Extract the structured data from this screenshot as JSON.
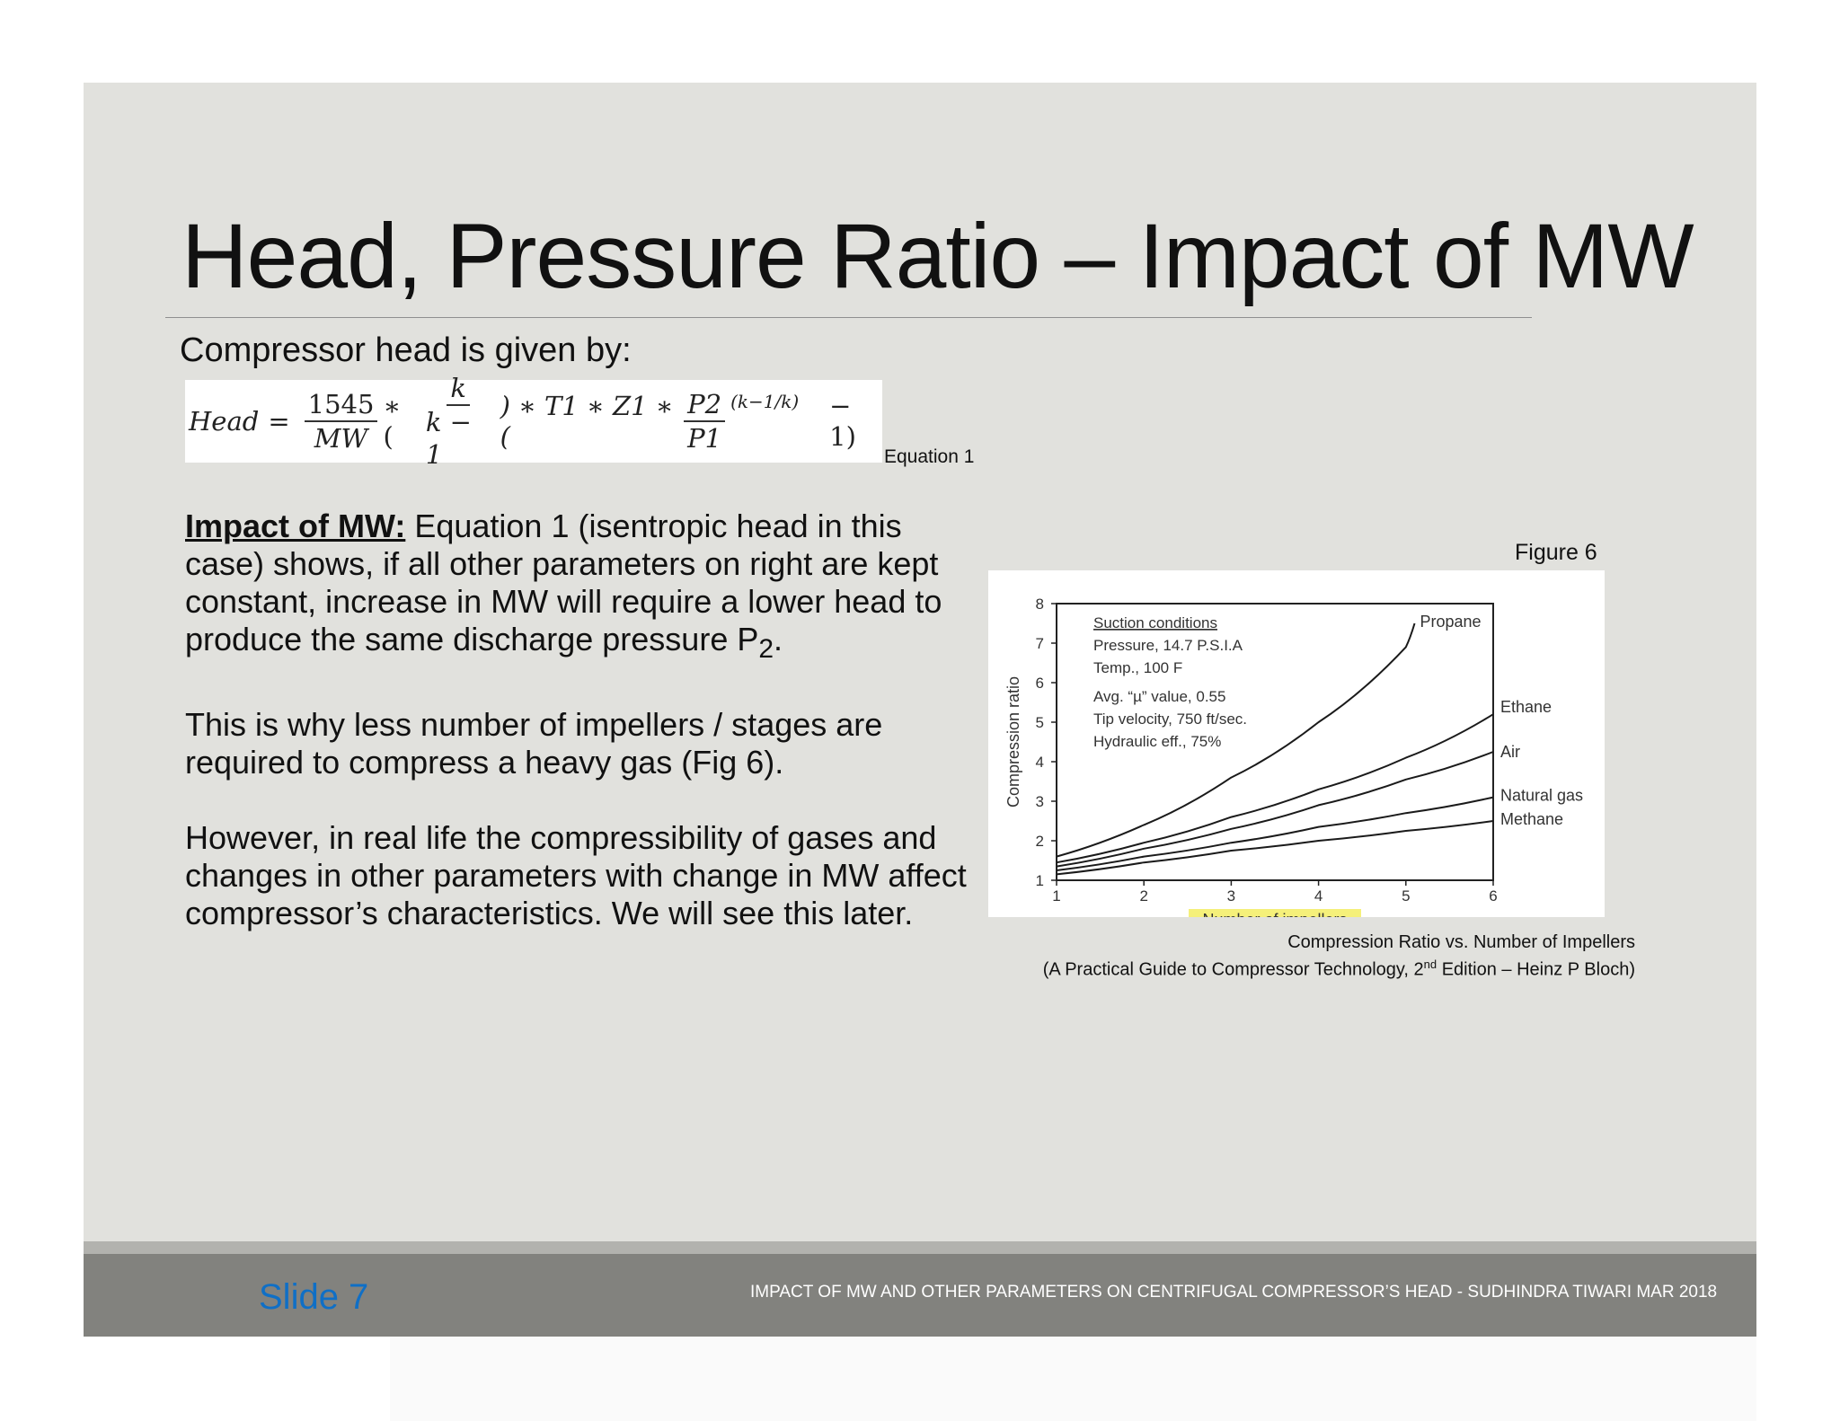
{
  "slide": {
    "title": "Head, Pressure Ratio – Impact of MW",
    "intro": "Compressor head is given by:",
    "equation": {
      "lhs": "Head",
      "eq": "=",
      "frac1_num": "1545",
      "frac1_den": "MW",
      "op1": "∗ (",
      "frac2_num": "k",
      "frac2_den": "k − 1",
      "mid": ") ∗ T1 ∗ Z1 ∗ (",
      "frac3_num": "P2",
      "frac3_den": "P1",
      "exponent": "(k−1/k)",
      "tail": "− 1)",
      "label": "Equation 1"
    },
    "paragraphs": {
      "p1_head": "Impact of MW:",
      "p1_body": " Equation 1 (isentropic head in this case) shows, if all other parameters on right are kept constant, increase in MW will require a lower head to produce the same discharge pressure P",
      "p1_sub": "2",
      "p1_end": ".",
      "p2": "This is why less number of impellers /  stages are required to compress a heavy gas (Fig 6).",
      "p3": "However, in real life the compressibility of gases and changes in other parameters with change in MW affect compressor’s characteristics. We will see this later."
    },
    "figure_label": "Figure 6",
    "caption_line1": "Compression Ratio vs. Number of Impellers",
    "caption_line2_a": "(A Practical Guide to Compressor Technology, 2",
    "caption_line2_sup": "nd",
    "caption_line2_b": " Edition – Heinz P Bloch)"
  },
  "footer": {
    "slide_number": "Slide 7",
    "text": "IMPACT OF MW AND OTHER PARAMETERS ON CENTRIFUGAL COMPRESSOR’S HEAD - SUDHINDRA TIWARI MAR 2018"
  },
  "colors": {
    "slide_bg": "#e1e1dd",
    "footer_bg": "#82827e",
    "slide_number": "#0f6fc6",
    "xlabel_highlight": "#f5f07a"
  },
  "chart_data": {
    "type": "line",
    "xlabel": "Number of impellers",
    "ylabel": "Compression ratio",
    "xlim": [
      1,
      6
    ],
    "ylim": [
      1,
      8
    ],
    "x_ticks": [
      "1",
      "2",
      "3",
      "4",
      "5",
      "6"
    ],
    "y_ticks": [
      "1",
      "2",
      "3",
      "4",
      "5",
      "6",
      "7",
      "8"
    ],
    "annotation_lines": [
      "Suction conditions",
      "Pressure, 14.7 P.S.I.A",
      "Temp., 100 F",
      "Avg. “µ” value, 0.55",
      "Tip velocity, 750 ft/sec.",
      "Hydraulic eff., 75%"
    ],
    "x": [
      1,
      2,
      3,
      4,
      5
    ],
    "series": [
      {
        "name": "Propane",
        "x": [
          1,
          2,
          3,
          4,
          5,
          5.1
        ],
        "values": [
          1.6,
          2.4,
          3.6,
          5.0,
          6.9,
          7.5
        ]
      },
      {
        "name": "Ethane",
        "x": [
          1,
          2,
          3,
          4,
          5,
          6
        ],
        "values": [
          1.45,
          1.95,
          2.6,
          3.3,
          4.1,
          5.2
        ]
      },
      {
        "name": "Air",
        "x": [
          1,
          2,
          3,
          4,
          5,
          6
        ],
        "values": [
          1.35,
          1.8,
          2.3,
          2.9,
          3.55,
          4.25
        ]
      },
      {
        "name": "Natural gas",
        "x": [
          1,
          2,
          3,
          4,
          5,
          6
        ],
        "values": [
          1.25,
          1.6,
          1.95,
          2.35,
          2.7,
          3.1
        ]
      },
      {
        "name": "Methane",
        "x": [
          1,
          2,
          3,
          4,
          5,
          6
        ],
        "values": [
          1.15,
          1.45,
          1.75,
          2.0,
          2.25,
          2.5
        ]
      }
    ]
  }
}
